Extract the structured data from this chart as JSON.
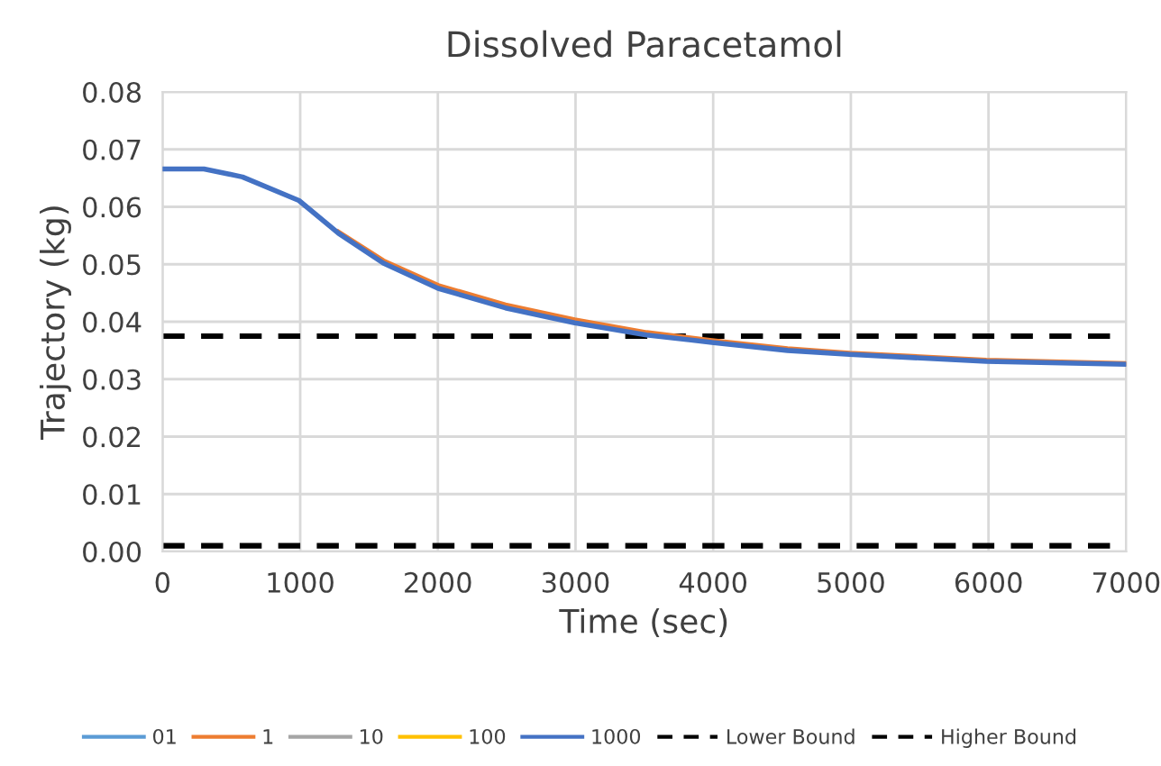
{
  "chart_data": {
    "type": "line",
    "title": "Dissolved Paracetamol",
    "xlabel": "Time (sec)",
    "ylabel": "Trajectory (kg)",
    "x": [
      0,
      301,
      581,
      991,
      1278,
      1604,
      2002,
      2491,
      2994,
      3516,
      3990,
      4540,
      4992,
      5984,
      7000
    ],
    "series": [
      {
        "name": "01",
        "color": "#5b9bd5",
        "values": [
          null,
          null,
          null,
          null,
          null,
          null,
          null,
          null,
          null,
          null,
          null,
          null,
          null,
          null,
          null
        ]
      },
      {
        "name": "1",
        "color": "#ed7d31",
        "values": [
          null,
          null,
          null,
          null,
          0.0556,
          0.0506,
          0.0463,
          0.0429,
          0.0403,
          0.0381,
          0.0367,
          0.0353,
          0.0345,
          0.0333,
          0.0327
        ]
      },
      {
        "name": "10",
        "color": "#a5a5a5",
        "values": [
          null,
          null,
          null,
          null,
          null,
          null,
          null,
          null,
          null,
          null,
          null,
          null,
          null,
          null,
          null
        ]
      },
      {
        "name": "100",
        "color": "#ffc000",
        "values": [
          null,
          null,
          null,
          null,
          null,
          null,
          null,
          null,
          null,
          null,
          null,
          null,
          null,
          null,
          null
        ]
      },
      {
        "name": "1000",
        "color": "#4472c4",
        "values": [
          0.0666,
          0.0666,
          0.0652,
          0.0611,
          0.0554,
          0.0502,
          0.0458,
          0.0424,
          0.0398,
          0.0377,
          0.0364,
          0.035,
          0.0343,
          0.0331,
          0.0326
        ]
      }
    ],
    "ref_lines": [
      {
        "axis": "y",
        "value": 0.001,
        "label": "Lower Bound",
        "color": "#000000",
        "line_style": "dashed"
      },
      {
        "axis": "y",
        "value": 0.0375,
        "label": "Higher Bound",
        "color": "#000000",
        "line_style": "dashed"
      }
    ],
    "xlim": [
      0,
      7000
    ],
    "ylim": [
      0,
      0.08
    ],
    "xticks": [
      0,
      1000,
      2000,
      3000,
      4000,
      5000,
      6000,
      7000
    ],
    "yticks": [
      {
        "value": 0,
        "label": "0.00"
      },
      {
        "value": 0.01,
        "label": "0.01"
      },
      {
        "value": 0.02,
        "label": "0.02"
      },
      {
        "value": 0.03,
        "label": "0.03"
      },
      {
        "value": 0.04,
        "label": "0.04"
      },
      {
        "value": 0.05,
        "label": "0.05"
      },
      {
        "value": 0.06,
        "label": "0.06"
      },
      {
        "value": 0.07,
        "label": "0.07"
      },
      {
        "value": 0.08,
        "label": "0.08"
      }
    ],
    "grid": true,
    "legend": "bottom",
    "marker": "none",
    "line_style": "solid"
  }
}
